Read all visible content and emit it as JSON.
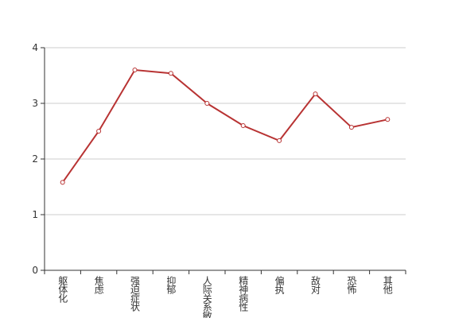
{
  "chart_data": {
    "type": "line",
    "categories": [
      "躯体化",
      "焦虑",
      "强迫症状",
      "抑郁",
      "人际关系敏感",
      "精神病性",
      "偏执",
      "敌对",
      "恐怖",
      "其他"
    ],
    "series": [
      {
        "color": "#b83333",
        "values": [
          1.58,
          2.5,
          3.6,
          3.54,
          3.0,
          2.6,
          2.33,
          3.17,
          2.57,
          2.71
        ]
      }
    ],
    "ylim": [
      0,
      4
    ],
    "yticks": [
      0,
      1,
      2,
      3,
      4
    ],
    "grid": true
  }
}
